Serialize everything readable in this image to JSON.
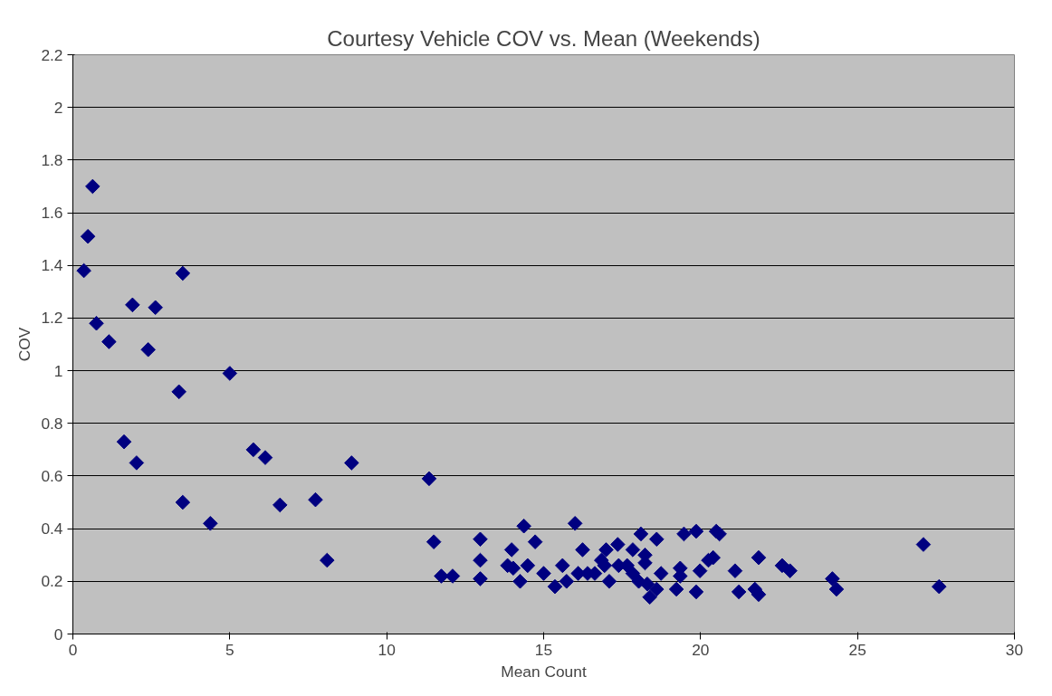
{
  "chart_data": {
    "type": "scatter",
    "title": "Courtesy Vehicle COV vs. Mean (Weekends)",
    "xlabel": "Mean Count",
    "ylabel": "COV",
    "series": [
      {
        "color": "#000080",
        "x": [
          0.63,
          0.48,
          0.35,
          3.5,
          0.75,
          1.9,
          2.63,
          1.15,
          2.4,
          3.38,
          5.0,
          1.63,
          2.03,
          3.5,
          4.38,
          5.75,
          6.13,
          6.6,
          7.73,
          8.1,
          8.88,
          11.35,
          11.5,
          11.74,
          12.1,
          12.98,
          12.98,
          12.98,
          13.98,
          13.85,
          14.03,
          14.37,
          14.73,
          14.49,
          14.25,
          15.0,
          15.36,
          15.6,
          15.73,
          16.0,
          16.24,
          16.1,
          16.4,
          16.63,
          16.84,
          16.99,
          16.94,
          17.09,
          17.36,
          17.39,
          17.66,
          17.84,
          17.84,
          18.1,
          18.23,
          18.23,
          18.03,
          18.3,
          18.38,
          18.6,
          18.74,
          18.6,
          19.35,
          19.35,
          19.23,
          19.47,
          19.86,
          19.86,
          19.98,
          20.25,
          20.4,
          20.5,
          20.6,
          21.1,
          21.22,
          21.73,
          21.85,
          21.85,
          22.6,
          22.85,
          24.2,
          24.33,
          27.1,
          27.6
        ],
        "values": [
          1.7,
          1.51,
          1.38,
          1.37,
          1.18,
          1.25,
          1.24,
          1.11,
          1.08,
          0.92,
          0.99,
          0.73,
          0.65,
          0.5,
          0.42,
          0.7,
          0.67,
          0.49,
          0.51,
          0.28,
          0.65,
          0.59,
          0.35,
          0.22,
          0.22,
          0.36,
          0.28,
          0.21,
          0.32,
          0.26,
          0.25,
          0.41,
          0.35,
          0.26,
          0.2,
          0.23,
          0.18,
          0.26,
          0.2,
          0.42,
          0.32,
          0.23,
          0.23,
          0.23,
          0.28,
          0.32,
          0.26,
          0.2,
          0.34,
          0.26,
          0.26,
          0.32,
          0.23,
          0.38,
          0.3,
          0.27,
          0.2,
          0.19,
          0.14,
          0.36,
          0.23,
          0.17,
          0.25,
          0.22,
          0.17,
          0.38,
          0.39,
          0.16,
          0.24,
          0.28,
          0.29,
          0.39,
          0.38,
          0.24,
          0.16,
          0.17,
          0.29,
          0.15,
          0.26,
          0.24,
          0.21,
          0.17,
          0.34,
          0.18
        ]
      }
    ],
    "marker": "diamond",
    "grid": "y",
    "xlim": [
      0,
      30
    ],
    "xticks": [
      0,
      5,
      10,
      15,
      20,
      25,
      30
    ],
    "ylim": [
      0,
      2.2
    ],
    "yticks": [
      0,
      {
        "value": 0.2,
        "label": "0.2"
      },
      {
        "value": 0.4,
        "label": "0.4"
      },
      {
        "value": 0.6,
        "label": "0.6"
      },
      {
        "value": 0.8,
        "label": "0.8"
      },
      1,
      {
        "value": 1.2,
        "label": "1.2"
      },
      {
        "value": 1.4,
        "label": "1.4"
      },
      {
        "value": 1.6,
        "label": "1.6"
      },
      {
        "value": 1.8,
        "label": "1.8"
      },
      2,
      {
        "value": 2.2,
        "label": "2.2"
      }
    ]
  }
}
